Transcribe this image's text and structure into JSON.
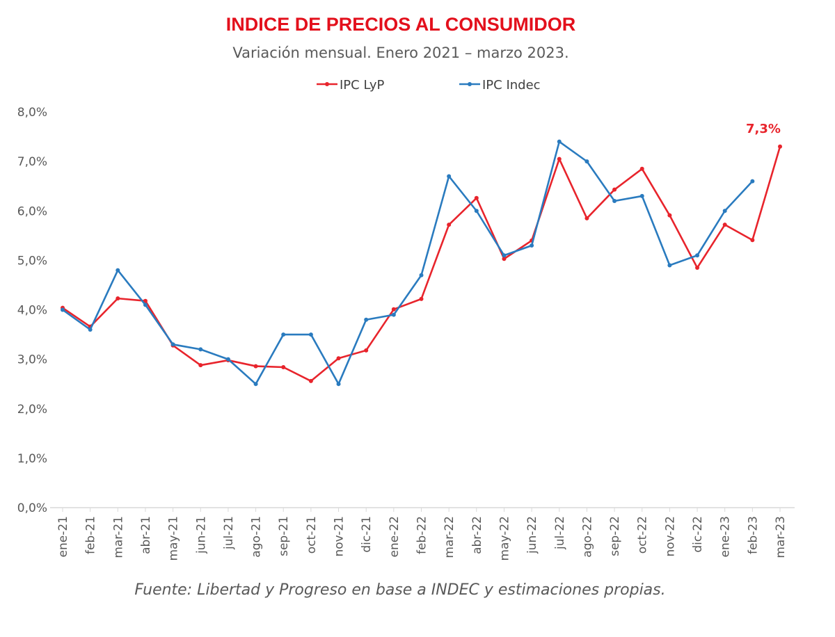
{
  "chart_data": {
    "type": "line",
    "title": "INDICE DE PRECIOS AL CONSUMIDOR",
    "subtitle": "Variación mensual. Enero 2021 – marzo 2023.",
    "footer": "Fuente: Libertad y Progreso  en base a INDEC y estimaciones propias.",
    "categories": [
      "ene-21",
      "feb-21",
      "mar-21",
      "abr-21",
      "may-21",
      "jun-21",
      "jul-21",
      "ago-21",
      "sep-21",
      "oct-21",
      "nov-21",
      "dic-21",
      "ene-22",
      "feb-22",
      "mar-22",
      "abr-22",
      "may-22",
      "jun-22",
      "jul-22",
      "ago-22",
      "sep-22",
      "oct-22",
      "nov-22",
      "dic-22",
      "ene-23",
      "feb-23",
      "mar-23"
    ],
    "ylim": [
      0,
      8
    ],
    "yticks": [
      "0,0%",
      "1,0%",
      "2,0%",
      "3,0%",
      "4,0%",
      "5,0%",
      "6,0%",
      "7,0%",
      "8,0%"
    ],
    "grid": false,
    "legend_placement": "top-center",
    "series": [
      {
        "name": "IPC LyP",
        "color": "#e8242c",
        "values": [
          4.04,
          3.66,
          4.23,
          4.18,
          3.28,
          2.88,
          2.98,
          2.86,
          2.84,
          2.56,
          3.02,
          3.18,
          4.01,
          4.22,
          5.72,
          6.26,
          5.03,
          5.4,
          7.05,
          5.85,
          6.43,
          6.85,
          5.91,
          4.85,
          5.72,
          5.41,
          7.3
        ]
      },
      {
        "name": "IPC Indec",
        "color": "#2a7bbf",
        "values": [
          4.0,
          3.6,
          4.8,
          4.1,
          3.3,
          3.2,
          3.0,
          2.5,
          3.5,
          3.5,
          2.5,
          3.8,
          3.9,
          4.7,
          6.7,
          6.0,
          5.1,
          5.3,
          7.4,
          7.0,
          6.2,
          6.3,
          4.9,
          5.1,
          6.0,
          6.6,
          null
        ]
      }
    ],
    "annotations": [
      {
        "category": "mar-23",
        "series": "IPC LyP",
        "text": "7,3%",
        "color": "#e8242c"
      }
    ]
  }
}
